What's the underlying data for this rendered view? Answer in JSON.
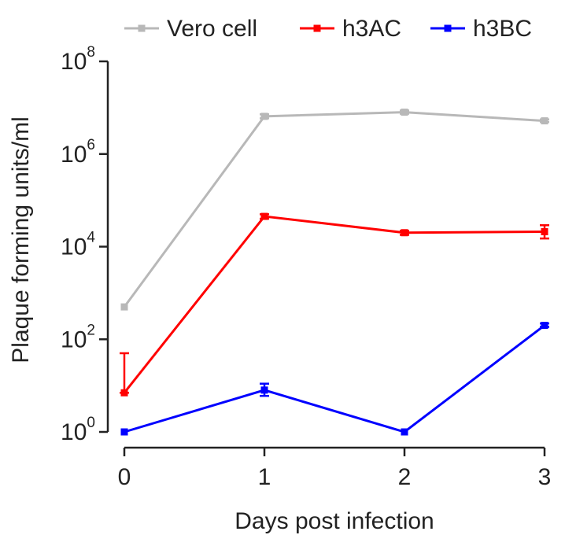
{
  "chart_data": {
    "type": "line",
    "title": "",
    "xlabel": "Days post infection",
    "ylabel": "Plaque forming units/ml",
    "y_scale": "log10",
    "x": [
      0,
      1,
      2,
      3
    ],
    "x_tick_labels": [
      "0",
      "1",
      "2",
      "3"
    ],
    "xlim": [
      0,
      3
    ],
    "ylim": [
      1,
      100000000
    ],
    "y_ticks": [
      {
        "base": "10",
        "exp": "0",
        "value": 1
      },
      {
        "base": "10",
        "exp": "2",
        "value": 100
      },
      {
        "base": "10",
        "exp": "4",
        "value": 10000
      },
      {
        "base": "10",
        "exp": "6",
        "value": 1000000
      },
      {
        "base": "10",
        "exp": "8",
        "value": 100000000
      }
    ],
    "grid": false,
    "legend_position": "top",
    "series": [
      {
        "name": "Vero cell",
        "color": "#b8b8b8",
        "values": [
          500,
          6500000,
          8000000,
          5200000
        ],
        "err_upper": [
          500,
          7200000,
          8700000,
          5600000
        ],
        "err_lower": [
          500,
          5900000,
          7400000,
          4900000
        ]
      },
      {
        "name": "h3AC",
        "color": "#ff0000",
        "values": [
          7,
          45000,
          20000,
          21000
        ],
        "err_upper": [
          50,
          50000,
          22000,
          29000
        ],
        "err_lower": [
          7,
          40000,
          18000,
          15000
        ]
      },
      {
        "name": "h3BC",
        "color": "#0000ff",
        "values": [
          1,
          8,
          1,
          200
        ],
        "err_upper": [
          1,
          11,
          1,
          220
        ],
        "err_lower": [
          1,
          6,
          1,
          185
        ]
      }
    ]
  }
}
